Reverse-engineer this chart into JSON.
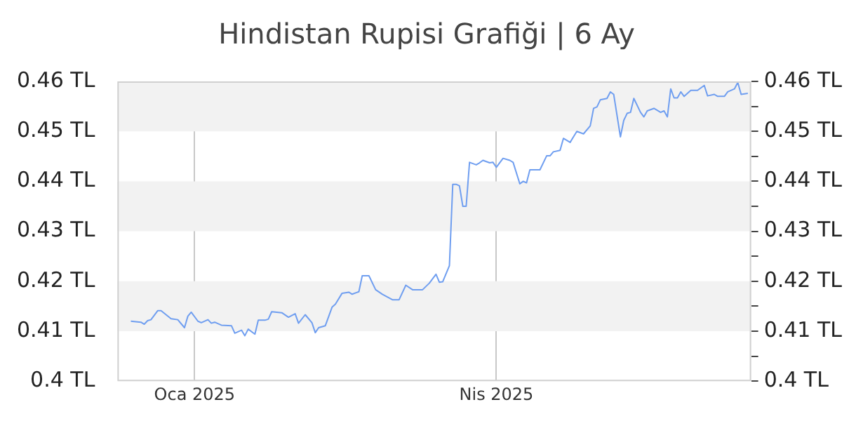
{
  "chart_data": {
    "type": "line",
    "title": "Hindistan Rupisi Grafiği | 6 Ay",
    "xlim": [
      "2024-12-09",
      "2025-06-16"
    ],
    "xticks": [
      {
        "value": "2025-01-01",
        "label": "Oca 2025"
      },
      {
        "value": "2025-04-01",
        "label": "Nis 2025"
      }
    ],
    "ylim": [
      0.4,
      0.46
    ],
    "yticks": [
      {
        "value": 0.4,
        "label": "0.4 TL"
      },
      {
        "value": 0.41,
        "label": "0.41 TL"
      },
      {
        "value": 0.42,
        "label": "0.42 TL"
      },
      {
        "value": 0.43,
        "label": "0.43 TL"
      },
      {
        "value": 0.44,
        "label": "0.44 TL"
      },
      {
        "value": 0.45,
        "label": "0.45 TL"
      },
      {
        "value": 0.46,
        "label": "0.46 TL"
      }
    ],
    "y2lim": [
      0.4,
      0.46
    ],
    "y2ticks": [
      {
        "value": 0.4,
        "label": "0.4 TL"
      },
      {
        "value": 0.405,
        "label": null
      },
      {
        "value": 0.41,
        "label": "0.41 TL"
      },
      {
        "value": 0.415,
        "label": null
      },
      {
        "value": 0.42,
        "label": "0.42 TL"
      },
      {
        "value": 0.425,
        "label": null
      },
      {
        "value": 0.43,
        "label": "0.43 TL"
      },
      {
        "value": 0.435,
        "label": null
      },
      {
        "value": 0.44,
        "label": "0.44 TL"
      },
      {
        "value": 0.445,
        "label": null
      },
      {
        "value": 0.45,
        "label": "0.45 TL"
      },
      {
        "value": 0.455,
        "label": null
      },
      {
        "value": 0.46,
        "label": "0.46 TL"
      }
    ],
    "grid": true,
    "legend": false,
    "marker": "none",
    "line_style": "solid",
    "series": [
      {
        "color": "#6f9ef0",
        "x": [
          "2024-12-13",
          "2024-12-16",
          "2024-12-17",
          "2024-12-18",
          "2024-12-19",
          "2024-12-21",
          "2024-12-22",
          "2024-12-25",
          "2024-12-27",
          "2024-12-29",
          "2024-12-30",
          "2024-12-31",
          "2025-01-02",
          "2025-01-03",
          "2025-01-05",
          "2025-01-06",
          "2025-01-07",
          "2025-01-09",
          "2025-01-12",
          "2025-01-13",
          "2025-01-15",
          "2025-01-16",
          "2025-01-17",
          "2025-01-19",
          "2025-01-20",
          "2025-01-22",
          "2025-01-23",
          "2025-01-24",
          "2025-01-27",
          "2025-01-29",
          "2025-01-31",
          "2025-02-01",
          "2025-02-03",
          "2025-02-05",
          "2025-02-06",
          "2025-02-07",
          "2025-02-09",
          "2025-02-11",
          "2025-02-12",
          "2025-02-14",
          "2025-02-16",
          "2025-02-17",
          "2025-02-19",
          "2025-02-20",
          "2025-02-22",
          "2025-02-24",
          "2025-02-26",
          "2025-03-01",
          "2025-03-03",
          "2025-03-05",
          "2025-03-07",
          "2025-03-10",
          "2025-03-12",
          "2025-03-14",
          "2025-03-15",
          "2025-03-16",
          "2025-03-18",
          "2025-03-19",
          "2025-03-20",
          "2025-03-21",
          "2025-03-22",
          "2025-03-23",
          "2025-03-24",
          "2025-03-26",
          "2025-03-27",
          "2025-03-28",
          "2025-03-30",
          "2025-03-31",
          "2025-04-01",
          "2025-04-03",
          "2025-04-05",
          "2025-04-06",
          "2025-04-08",
          "2025-04-09",
          "2025-04-10",
          "2025-04-11",
          "2025-04-14",
          "2025-04-16",
          "2025-04-17",
          "2025-04-18",
          "2025-04-20",
          "2025-04-21",
          "2025-04-23",
          "2025-04-24",
          "2025-04-25",
          "2025-04-27",
          "2025-04-29",
          "2025-04-30",
          "2025-05-01",
          "2025-05-02",
          "2025-05-04",
          "2025-05-05",
          "2025-05-06",
          "2025-05-08",
          "2025-05-09",
          "2025-05-10",
          "2025-05-11",
          "2025-05-12",
          "2025-05-14",
          "2025-05-15",
          "2025-05-16",
          "2025-05-18",
          "2025-05-20",
          "2025-05-21",
          "2025-05-22",
          "2025-05-23",
          "2025-05-24",
          "2025-05-25",
          "2025-05-26",
          "2025-05-27",
          "2025-05-29",
          "2025-05-31",
          "2025-06-02",
          "2025-06-03",
          "2025-06-05",
          "2025-06-06",
          "2025-06-08",
          "2025-06-09",
          "2025-06-11",
          "2025-06-12",
          "2025-06-13",
          "2025-06-15"
        ],
        "values": [
          0.412,
          0.4118,
          0.4114,
          0.4121,
          0.4123,
          0.4141,
          0.4141,
          0.4125,
          0.4123,
          0.4107,
          0.413,
          0.4138,
          0.412,
          0.4117,
          0.4123,
          0.4116,
          0.4118,
          0.4112,
          0.4111,
          0.4096,
          0.4102,
          0.4091,
          0.4104,
          0.4094,
          0.4122,
          0.4122,
          0.4124,
          0.4139,
          0.4137,
          0.4128,
          0.4135,
          0.4116,
          0.4133,
          0.4117,
          0.4097,
          0.4107,
          0.4111,
          0.4148,
          0.4154,
          0.4176,
          0.4178,
          0.4174,
          0.4179,
          0.4211,
          0.4211,
          0.4183,
          0.4174,
          0.4163,
          0.4163,
          0.4192,
          0.4183,
          0.4183,
          0.4196,
          0.4214,
          0.4198,
          0.4199,
          0.4231,
          0.4394,
          0.4394,
          0.4391,
          0.435,
          0.435,
          0.4438,
          0.4433,
          0.4437,
          0.4442,
          0.4437,
          0.4438,
          0.4428,
          0.4446,
          0.4442,
          0.4438,
          0.4395,
          0.44,
          0.4397,
          0.4423,
          0.4423,
          0.4451,
          0.4451,
          0.4459,
          0.4462,
          0.4486,
          0.4478,
          0.4489,
          0.45,
          0.4495,
          0.4511,
          0.4546,
          0.4549,
          0.4563,
          0.4566,
          0.4579,
          0.4574,
          0.4489,
          0.4522,
          0.4536,
          0.4538,
          0.4566,
          0.4538,
          0.4529,
          0.4541,
          0.4546,
          0.4538,
          0.4541,
          0.4529,
          0.4585,
          0.4567,
          0.4567,
          0.4579,
          0.457,
          0.4582,
          0.4582,
          0.4592,
          0.4571,
          0.4574,
          0.457,
          0.457,
          0.4579,
          0.4585,
          0.4598,
          0.4574,
          0.4576
        ]
      }
    ]
  }
}
